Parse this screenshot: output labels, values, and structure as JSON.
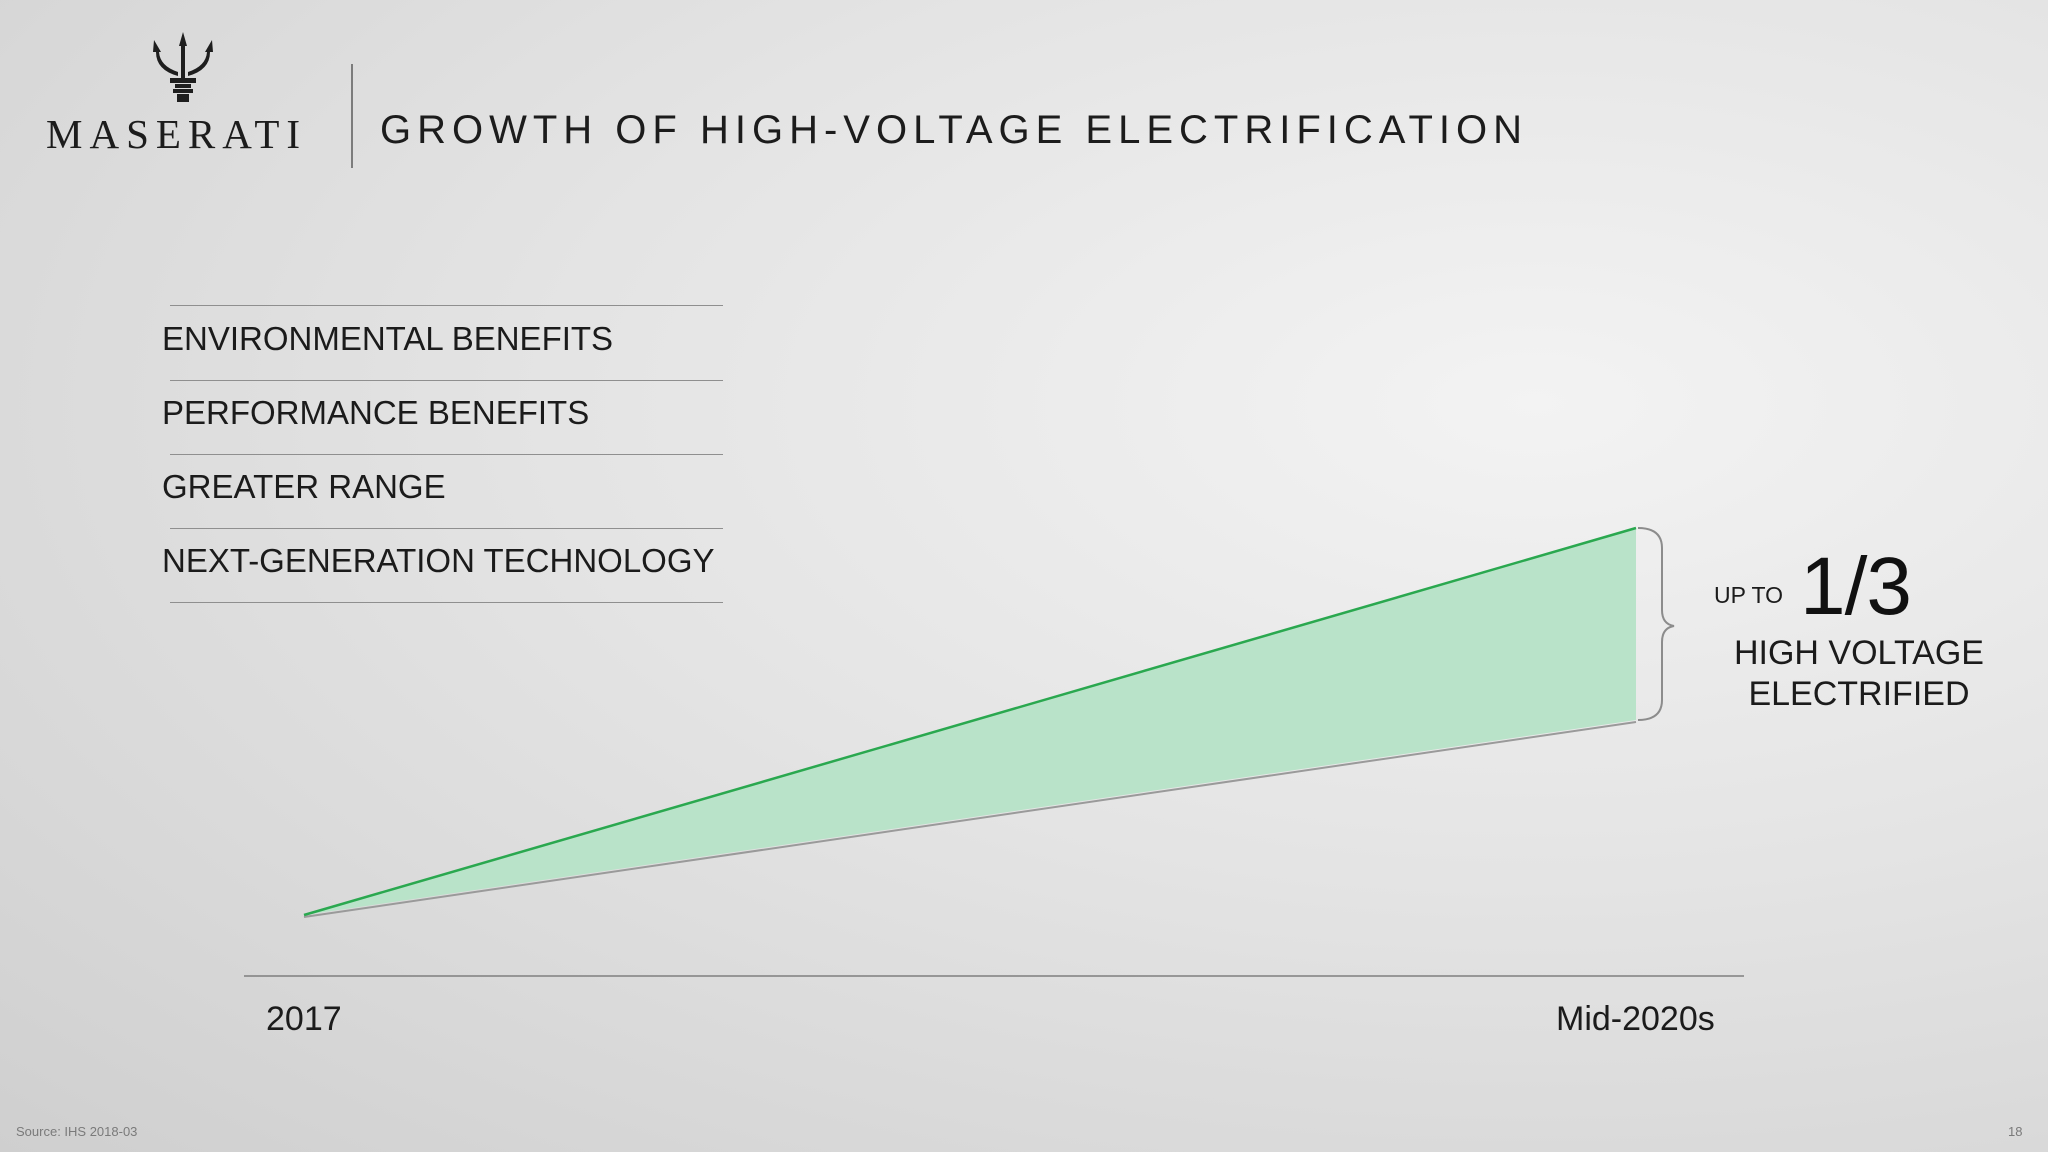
{
  "header": {
    "brand": "MASERATI",
    "title": "GROWTH OF HIGH-VOLTAGE ELECTRIFICATION"
  },
  "benefits": [
    {
      "label": "ENVIRONMENTAL BENEFITS"
    },
    {
      "label": "PERFORMANCE BENEFITS"
    },
    {
      "label": "GREATER RANGE"
    },
    {
      "label": "NEXT-GENERATION TECHNOLOGY"
    }
  ],
  "chart_data": {
    "type": "area",
    "x_start_label": "2017",
    "x_end_label": "Mid-2020s",
    "fill_color": "#b9e3c9",
    "line_color": "#2aa84f"
  },
  "callout": {
    "prefix": "UP TO",
    "value": "1/3",
    "line1": "HIGH VOLTAGE",
    "line2": "ELECTRIFIED"
  },
  "footer": {
    "source": "Source: IHS 2018-03",
    "page": "18"
  },
  "icons": {
    "logo": "trident-icon"
  }
}
